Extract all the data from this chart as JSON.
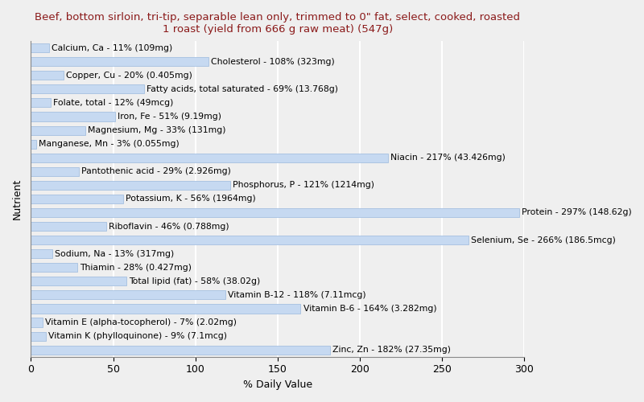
{
  "title": "Beef, bottom sirloin, tri-tip, separable lean only, trimmed to 0\" fat, select, cooked, roasted\n1 roast (yield from 666 g raw meat) (547g)",
  "xlabel": "% Daily Value",
  "ylabel": "Nutrient",
  "nutrients": [
    "Calcium, Ca - 11% (109mg)",
    "Cholesterol - 108% (323mg)",
    "Copper, Cu - 20% (0.405mg)",
    "Fatty acids, total saturated - 69% (13.768g)",
    "Folate, total - 12% (49mcg)",
    "Iron, Fe - 51% (9.19mg)",
    "Magnesium, Mg - 33% (131mg)",
    "Manganese, Mn - 3% (0.055mg)",
    "Niacin - 217% (43.426mg)",
    "Pantothenic acid - 29% (2.926mg)",
    "Phosphorus, P - 121% (1214mg)",
    "Potassium, K - 56% (1964mg)",
    "Protein - 297% (148.62g)",
    "Riboflavin - 46% (0.788mg)",
    "Selenium, Se - 266% (186.5mcg)",
    "Sodium, Na - 13% (317mg)",
    "Thiamin - 28% (0.427mg)",
    "Total lipid (fat) - 58% (38.02g)",
    "Vitamin B-12 - 118% (7.11mcg)",
    "Vitamin B-6 - 164% (3.282mg)",
    "Vitamin E (alpha-tocopherol) - 7% (2.02mg)",
    "Vitamin K (phylloquinone) - 9% (7.1mcg)",
    "Zinc, Zn - 182% (27.35mg)"
  ],
  "values": [
    11,
    108,
    20,
    69,
    12,
    51,
    33,
    3,
    217,
    29,
    121,
    56,
    297,
    46,
    266,
    13,
    28,
    58,
    118,
    164,
    7,
    9,
    182
  ],
  "bar_color": "#c6d9f1",
  "bar_edge_color": "#9ab8dc",
  "title_color": "#8b1a1a",
  "label_color": "#000000",
  "background_color": "#efefef",
  "axes_background_color": "#efefef",
  "xlim": [
    0,
    300
  ],
  "xticks": [
    0,
    50,
    100,
    150,
    200,
    250,
    300
  ],
  "grid_color": "#ffffff",
  "title_fontsize": 9.5,
  "label_fontsize": 7.8,
  "tick_fontsize": 9,
  "ylabel_fontsize": 9,
  "bar_height": 0.65
}
